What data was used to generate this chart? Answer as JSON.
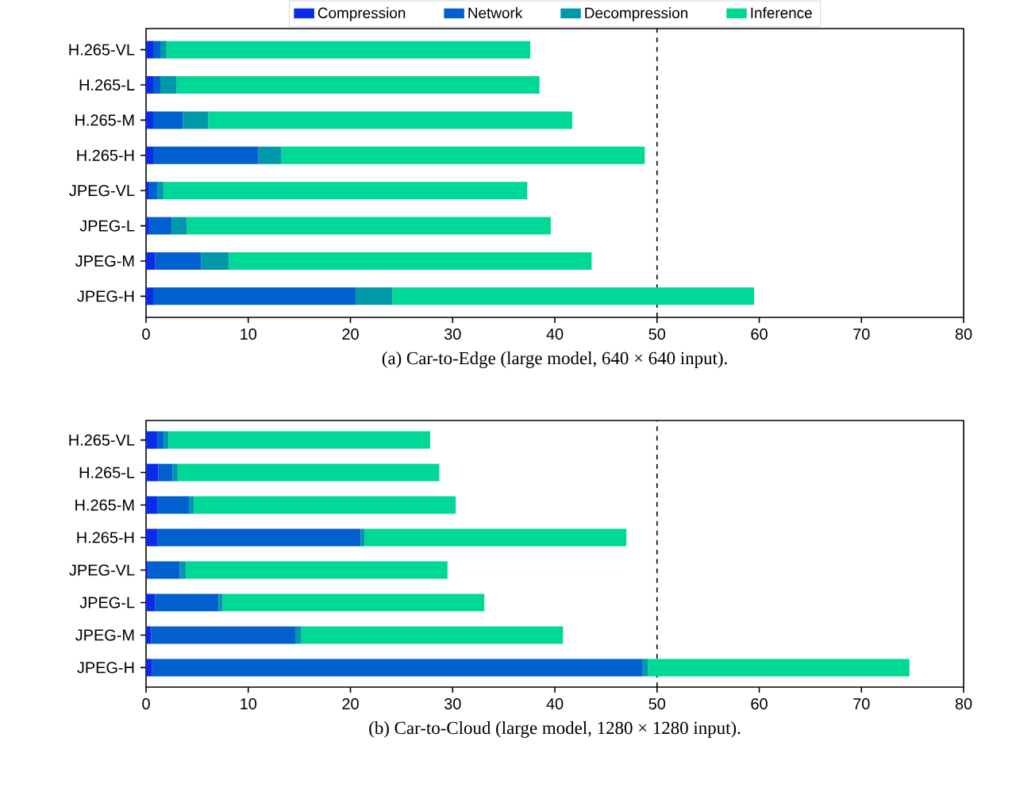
{
  "chart_data": [
    {
      "type": "bar",
      "orientation": "horizontal",
      "stacked": true,
      "title": "(a) Car-to-Edge (large model, 640 × 640 input).",
      "categories": [
        "H.265-VL",
        "H.265-L",
        "H.265-M",
        "H.265-H",
        "JPEG-VL",
        "JPEG-L",
        "JPEG-M",
        "JPEG-H"
      ],
      "series": [
        {
          "name": "Compression",
          "color": "#0a2be8",
          "values": [
            0.7,
            0.7,
            0.7,
            0.7,
            0.3,
            0.3,
            0.9,
            0.7
          ]
        },
        {
          "name": "Network",
          "color": "#0060d0",
          "values": [
            0.7,
            0.7,
            2.9,
            10.3,
            0.8,
            2.2,
            4.5,
            19.8
          ]
        },
        {
          "name": "Decompression",
          "color": "#0099aa",
          "values": [
            0.6,
            1.6,
            2.5,
            2.2,
            0.6,
            1.5,
            2.7,
            3.6
          ]
        },
        {
          "name": "Inference",
          "color": "#00d898",
          "values": [
            35.6,
            35.5,
            35.6,
            35.6,
            35.6,
            35.6,
            35.5,
            35.4
          ]
        }
      ],
      "xlim": [
        0,
        80
      ],
      "xticks": [
        0,
        10,
        20,
        30,
        40,
        50,
        60,
        70,
        80
      ],
      "ref_lines": [
        {
          "axis": "x",
          "value": 50,
          "line_style": "dashed",
          "color": "#000000"
        }
      ],
      "legend": "top",
      "grid": false
    },
    {
      "type": "bar",
      "orientation": "horizontal",
      "stacked": true,
      "title": "(b) Car-to-Cloud (large model, 1280 × 1280 input).",
      "categories": [
        "H.265-VL",
        "H.265-L",
        "H.265-M",
        "H.265-H",
        "JPEG-VL",
        "JPEG-L",
        "JPEG-M",
        "JPEG-H"
      ],
      "series": [
        {
          "color": "#0a2be8",
          "values": [
            1.1,
            1.2,
            1.1,
            1.1,
            0.2,
            0.9,
            0.5,
            0.6
          ]
        },
        {
          "color": "#0060d0",
          "values": [
            0.6,
            1.4,
            3.1,
            19.9,
            3.1,
            6.2,
            14.1,
            48.0
          ]
        },
        {
          "color": "#0099aa",
          "values": [
            0.5,
            0.5,
            0.5,
            0.4,
            0.6,
            0.4,
            0.6,
            0.5
          ]
        },
        {
          "color": "#00d898",
          "values": [
            25.6,
            25.6,
            25.6,
            25.6,
            25.6,
            25.6,
            25.6,
            25.6
          ]
        }
      ],
      "xlim": [
        0,
        80
      ],
      "xticks": [
        0,
        10,
        20,
        30,
        40,
        50,
        60,
        70,
        80
      ],
      "ref_lines": [
        {
          "axis": "x",
          "value": 50,
          "line_style": "dashed",
          "color": "#000000"
        }
      ],
      "legend": false,
      "grid": false
    }
  ]
}
